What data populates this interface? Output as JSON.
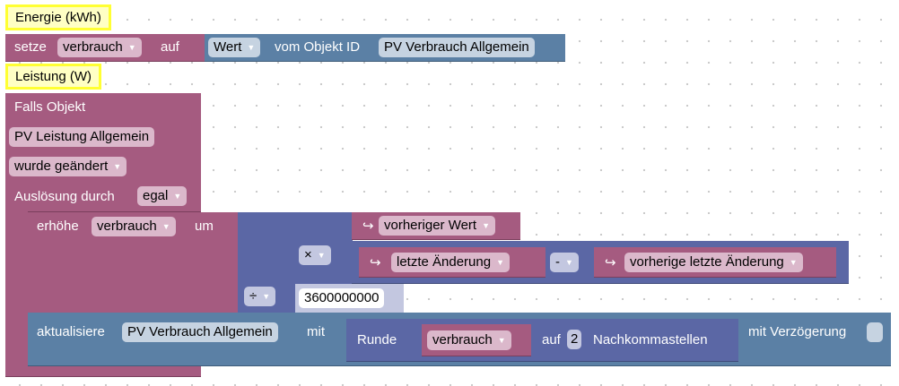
{
  "colors": {
    "procedure": "#a55b80",
    "object": "#5b80a5",
    "math": "#5b67a5",
    "comment": "#ffff33"
  },
  "comment1": "Energie (kWh)",
  "setze": {
    "label": "setze",
    "var": "verbrauch",
    "auf": "auf",
    "value_dropdown": "Wert",
    "vom": "vom Objekt ID",
    "object": "PV Verbrauch Allgemein"
  },
  "comment2": "Leistung (W)",
  "trigger": {
    "label": "Falls Objekt",
    "object": "PV Leistung Allgemein",
    "event": "wurde geändert",
    "ausloesung": "Auslösung durch",
    "ausloesung_value": "egal"
  },
  "erhoehe": {
    "label": "erhöhe",
    "var": "verbrauch",
    "um": "um",
    "div_op": "÷",
    "mul_op": "×",
    "prev_value": "vorheriger Wert",
    "last_change": "letzte Änderung",
    "minus_op": "-",
    "prev_last_change": "vorherige letzte Änderung",
    "divisor": "3600000000",
    "return_icon": "↪"
  },
  "aktualisiere": {
    "label": "aktualisiere",
    "object": "PV Verbrauch Allgemein",
    "mit": "mit",
    "runde": "Runde",
    "var": "verbrauch",
    "auf": "auf",
    "digits": "2",
    "nachkomma": "Nachkommastellen",
    "delay": "mit Verzögerung"
  }
}
